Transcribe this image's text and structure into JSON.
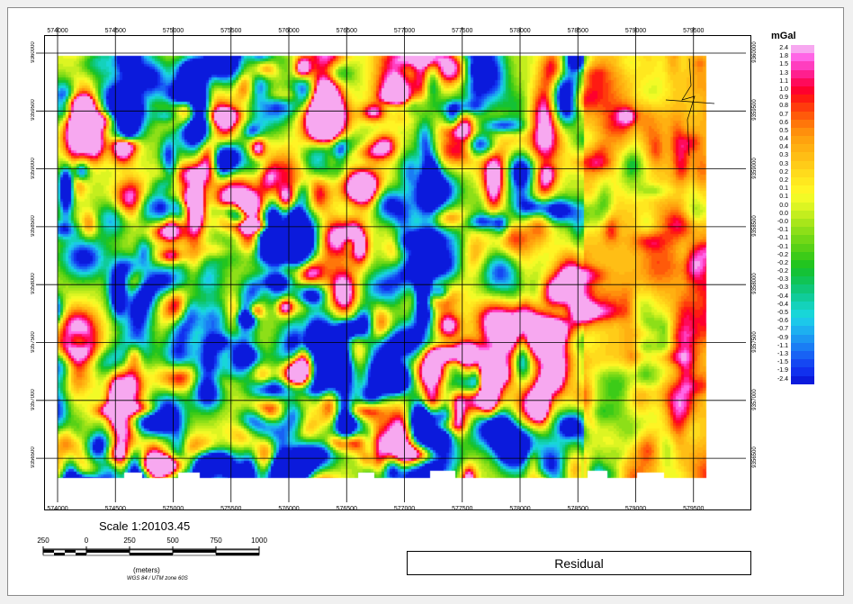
{
  "map": {
    "x_ticks": [
      "574000",
      "574500",
      "575000",
      "575500",
      "576000",
      "576500",
      "577000",
      "577500",
      "578000",
      "578500",
      "579000",
      "579500"
    ],
    "y_ticks": [
      "9360000",
      "9359500",
      "9359000",
      "9358500",
      "9358000",
      "9357500",
      "9357000",
      "9356500"
    ],
    "easting_range": [
      574000,
      579800
    ],
    "grid_spacing_m": 500
  },
  "legend": {
    "unit": "mGal",
    "labels": [
      "2.4",
      "1.8",
      "1.5",
      "1.3",
      "1.1",
      "1.0",
      "0.9",
      "0.8",
      "0.7",
      "0.6",
      "0.5",
      "0.4",
      "0.4",
      "0.3",
      "0.3",
      "0.2",
      "0.2",
      "0.1",
      "0.1",
      "0.0",
      "0.0",
      "-0.0",
      "-0.1",
      "-0.1",
      "-0.1",
      "-0.2",
      "-0.2",
      "-0.2",
      "-0.3",
      "-0.3",
      "-0.4",
      "-0.4",
      "-0.5",
      "-0.6",
      "-0.7",
      "-0.9",
      "-1.1",
      "-1.3",
      "-1.5",
      "-1.9",
      "-2.4"
    ],
    "colors": [
      "#f7a8f0",
      "#ff66e6",
      "#ff3ebf",
      "#ff1f8e",
      "#ff0a5a",
      "#ff002d",
      "#ff1a12",
      "#ff3b0c",
      "#ff5a0a",
      "#ff760a",
      "#ff8f0c",
      "#ffa20e",
      "#ffb011",
      "#ffbe15",
      "#ffcc18",
      "#ffdb1c",
      "#ffe81f",
      "#fff424",
      "#f2fa26",
      "#dcf522",
      "#c3ee1e",
      "#a8e61a",
      "#8ddf18",
      "#72d816",
      "#58d116",
      "#3ccb18",
      "#22c51f",
      "#14c236",
      "#10c455",
      "#0fc778",
      "#10cc9a",
      "#14d2bb",
      "#18d6d8",
      "#1cc8ea",
      "#1db0f0",
      "#1c97f2",
      "#1a7df4",
      "#1862f4",
      "#1547f2",
      "#1130ee",
      "#0b1adc"
    ]
  },
  "scale": {
    "text": "Scale 1:20103.45",
    "ticks": [
      "250",
      "0",
      "250",
      "500",
      "750",
      "1000"
    ],
    "units": "(meters)",
    "projection": "WGS 84 / UTM zone 60S"
  },
  "title": "Residual"
}
